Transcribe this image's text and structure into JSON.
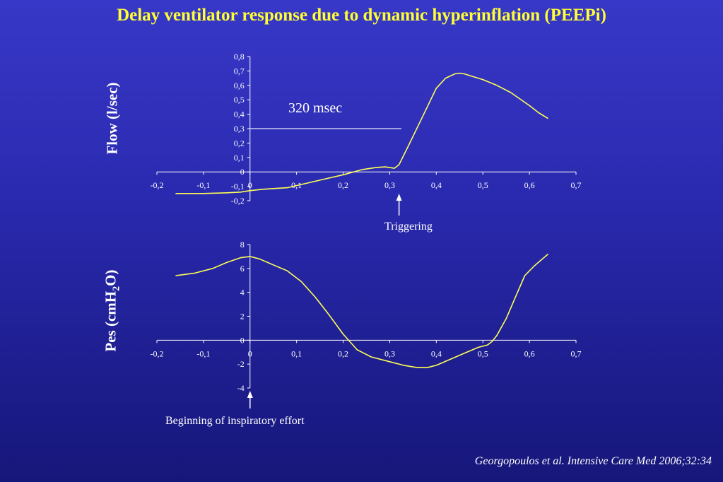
{
  "title": "Delay ventilator response due to dynamic hyperinflation (PEEPi)",
  "citation": "Georgopoulos et al. Intensive Care Med 2006;32:34",
  "colors": {
    "curve": "#ffff55",
    "axis": "#ffffff",
    "title": "#ffff33"
  },
  "chart_data": [
    {
      "type": "line",
      "ylabel_main": "Flow (l/sec)",
      "xlim": [
        -0.2,
        0.7
      ],
      "ylim": [
        -0.2,
        0.8
      ],
      "x_ticks": [
        "-0,2",
        "-0,1",
        "0",
        "0,1",
        "0,2",
        "0,3",
        "0,4",
        "0,5",
        "0,6",
        "0,7"
      ],
      "y_ticks": [
        "-0,2",
        "-0,1",
        "0",
        "0,1",
        "0,2",
        "0,3",
        "0,4",
        "0,5",
        "0,6",
        "0,7",
        "0,8"
      ],
      "series": [
        {
          "x": [
            -0.16,
            -0.1,
            -0.05,
            -0.02,
            0,
            0.03,
            0.08,
            0.12,
            0.16,
            0.2,
            0.24,
            0.27,
            0.29,
            0.3,
            0.31,
            0.32,
            0.34,
            0.37,
            0.4,
            0.42,
            0.44,
            0.45,
            0.46,
            0.48,
            0.5,
            0.53,
            0.56,
            0.6,
            0.62,
            0.64
          ],
          "y": [
            -0.15,
            -0.15,
            -0.145,
            -0.14,
            -0.13,
            -0.12,
            -0.11,
            -0.08,
            -0.05,
            -0.02,
            0.015,
            0.03,
            0.035,
            0.03,
            0.025,
            0.05,
            0.18,
            0.38,
            0.58,
            0.65,
            0.68,
            0.685,
            0.68,
            0.66,
            0.64,
            0.6,
            0.55,
            0.46,
            0.41,
            0.37
          ]
        }
      ],
      "annotations": {
        "delay_label": "320 msec",
        "delay_value": 0.3,
        "delay_x_end": 0.325,
        "trigger_label": "Triggering",
        "trigger_x": 0.32
      }
    },
    {
      "type": "line",
      "ylabel_main": "Pes (cmH",
      "ylabel_sub": "2",
      "ylabel_end": "O)",
      "xlim": [
        -0.2,
        0.7
      ],
      "ylim": [
        -4,
        8
      ],
      "x_ticks": [
        "-0,2",
        "-0,1",
        "0",
        "0,1",
        "0,2",
        "0,3",
        "0,4",
        "0,5",
        "0,6",
        "0,7"
      ],
      "y_ticks": [
        "-4",
        "-2",
        "0",
        "2",
        "4",
        "6",
        "8"
      ],
      "series": [
        {
          "x": [
            -0.16,
            -0.12,
            -0.08,
            -0.05,
            -0.02,
            0,
            0.02,
            0.05,
            0.08,
            0.11,
            0.14,
            0.17,
            0.2,
            0.23,
            0.26,
            0.3,
            0.33,
            0.36,
            0.38,
            0.4,
            0.43,
            0.46,
            0.49,
            0.51,
            0.52,
            0.53,
            0.55,
            0.57,
            0.59,
            0.61,
            0.64
          ],
          "y": [
            5.4,
            5.6,
            6,
            6.5,
            6.9,
            7,
            6.8,
            6.3,
            5.8,
            4.9,
            3.6,
            2.1,
            0.5,
            -0.8,
            -1.4,
            -1.8,
            -2.1,
            -2.3,
            -2.3,
            -2.1,
            -1.6,
            -1.1,
            -0.6,
            -0.4,
            -0.1,
            0.4,
            1.8,
            3.6,
            5.4,
            6.2,
            7.2
          ]
        }
      ],
      "annotations": {
        "effort_label": "Beginning of inspiratory effort",
        "effort_x": 0
      }
    }
  ]
}
